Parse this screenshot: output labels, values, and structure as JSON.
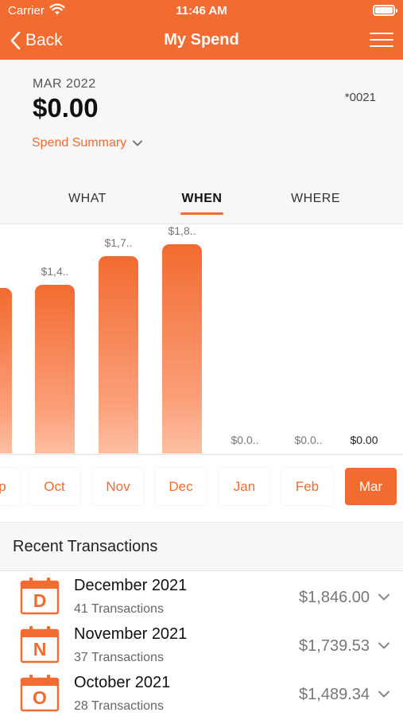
{
  "status_bar": {
    "carrier": "Carrier",
    "time": "11:46 AM"
  },
  "nav": {
    "back_label": "Back",
    "title": "My Spend"
  },
  "summary": {
    "period": "MAR 2022",
    "total": "$0.00",
    "card": "*0021",
    "spend_summary_label": "Spend Summary"
  },
  "tabs": [
    {
      "label": "WHAT",
      "active": false
    },
    {
      "label": "WHEN",
      "active": true
    },
    {
      "label": "WHERE",
      "active": false
    }
  ],
  "chart_data": {
    "type": "bar",
    "categories": [
      "Sep",
      "Oct",
      "Nov",
      "Dec",
      "Jan",
      "Feb",
      "Mar"
    ],
    "values": [
      null,
      1489.34,
      1739.53,
      1846.0,
      0,
      0,
      0
    ],
    "labels": [
      "",
      "$1,4..",
      "$1,7..",
      "$1,8..",
      "$0.0..",
      "$0.0..",
      "$0.00"
    ],
    "selected": "Mar",
    "color": "#f26b30"
  },
  "months": [
    {
      "label": "Sep",
      "selected": false
    },
    {
      "label": "Oct",
      "selected": false
    },
    {
      "label": "Nov",
      "selected": false
    },
    {
      "label": "Dec",
      "selected": false
    },
    {
      "label": "Jan",
      "selected": false
    },
    {
      "label": "Feb",
      "selected": false
    },
    {
      "label": "Mar",
      "selected": true
    }
  ],
  "recent": {
    "title": "Recent Transactions",
    "items": [
      {
        "letter": "D",
        "title": "December 2021",
        "count": "41 Transactions",
        "amount": "$1,846.00"
      },
      {
        "letter": "N",
        "title": "November 2021",
        "count": "37 Transactions",
        "amount": "$1,739.53"
      },
      {
        "letter": "O",
        "title": "October 2021",
        "count": "28 Transactions",
        "amount": "$1,489.34"
      }
    ]
  },
  "colors": {
    "accent": "#f26b30",
    "background": "#f7f7f7"
  }
}
